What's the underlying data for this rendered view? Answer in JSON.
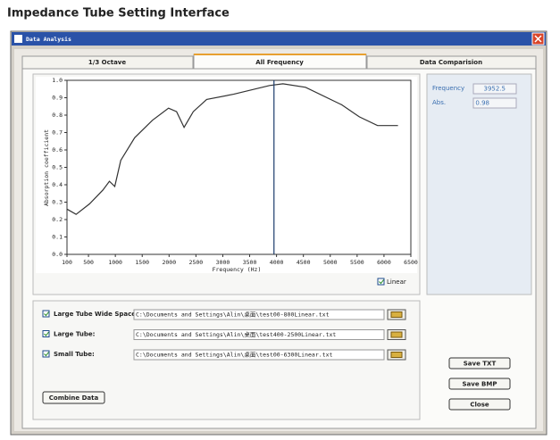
{
  "header": {
    "title": "Impedance Tube Setting Interface"
  },
  "window": {
    "title": "Data Analysis",
    "tabs": [
      "1/3 Octave",
      "All Frequency",
      "Data Comparision"
    ]
  },
  "chart_data": {
    "type": "line",
    "x_label": "Frequency (Hz)",
    "y_label": "Absorption coefficient",
    "x": [
      100,
      270,
      520,
      770,
      890,
      990,
      1100,
      1360,
      1690,
      1990,
      2140,
      2280,
      2450,
      2700,
      3200,
      3870,
      4120,
      4540,
      5210,
      5540,
      5880,
      6260
    ],
    "values": [
      0.26,
      0.23,
      0.29,
      0.37,
      0.42,
      0.39,
      0.54,
      0.67,
      0.77,
      0.84,
      0.82,
      0.73,
      0.82,
      0.89,
      0.92,
      0.97,
      0.98,
      0.96,
      0.86,
      0.79,
      0.74,
      0.74
    ],
    "color": "#333333",
    "xlim": [
      100,
      6500
    ],
    "ylim": [
      0,
      1
    ],
    "xticks": [
      100,
      500,
      1000,
      1500,
      2000,
      2500,
      3000,
      3500,
      4000,
      4500,
      5000,
      5500,
      6000,
      6500
    ],
    "yticks": [
      {
        "value": 0,
        "label": "0.0"
      },
      0.1,
      0.2,
      0.3,
      0.4,
      0.5,
      0.6,
      0.7,
      0.8,
      0.9,
      {
        "value": 1,
        "label": "1.0"
      }
    ]
  },
  "readout": {
    "frequency_label": "Frequency",
    "frequency": 3952.5,
    "abs_label": "Abs.",
    "abs": 0.98
  },
  "linear": "Linear",
  "files": [
    {
      "label": "Large Tube Wide Space:",
      "path": "C:\\Documents and Settings\\Alin\\桌面\\test00-800Linear.txt"
    },
    {
      "label": "Large Tube:",
      "path": "C:\\Documents and Settings\\Alin\\桌面\\test400-2500Linear.txt"
    },
    {
      "label": "Small Tube:",
      "path": "C:\\Documents and Settings\\Alin\\桌面\\test00-6300Linear.txt"
    }
  ],
  "buttons": {
    "combine": "Combine Data",
    "save_txt": "Save TXT",
    "save_bmp": "Save BMP",
    "close": "Close"
  }
}
